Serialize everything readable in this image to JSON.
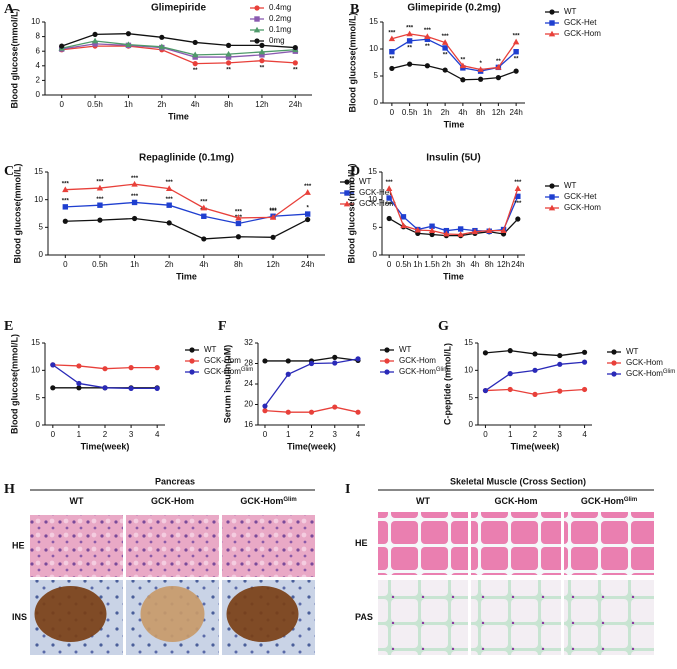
{
  "chart_data": [
    {
      "type": "line",
      "label": "A",
      "title": "Glimepiride",
      "xlabel": "Time",
      "ylabel": "Blood glucose(mmol/L)",
      "categories": [
        "0",
        "0.5h",
        "1h",
        "2h",
        "4h",
        "8h",
        "12h",
        "24h"
      ],
      "ylim": [
        0,
        10
      ],
      "yticks": [
        0,
        2,
        4,
        6,
        8,
        10
      ],
      "legend": "upper right",
      "series": [
        {
          "name": "0.4mg",
          "color": "#e8403a",
          "marker": "circle",
          "values": [
            6.2,
            6.7,
            6.7,
            6.2,
            4.3,
            4.4,
            4.7,
            4.4
          ],
          "annotation_side": "below",
          "annotations": [
            null,
            null,
            null,
            null,
            "**",
            "**",
            "**",
            "**"
          ]
        },
        {
          "name": "0.2mg",
          "color": "#8a5ab0",
          "marker": "square",
          "values": [
            6.3,
            7.0,
            6.8,
            6.5,
            5.2,
            5.2,
            5.5,
            6.0
          ]
        },
        {
          "name": "0.1mg",
          "color": "#4f9a6a",
          "marker": "triangle",
          "values": [
            6.4,
            7.4,
            6.9,
            6.6,
            5.5,
            5.6,
            5.9,
            6.2
          ]
        },
        {
          "name": "0mg",
          "color": "#111111",
          "marker": "circle",
          "values": [
            6.7,
            8.3,
            8.4,
            7.9,
            7.2,
            6.8,
            6.8,
            6.5
          ]
        }
      ]
    },
    {
      "type": "line",
      "label": "B",
      "title": "Glimepiride (0.2mg)",
      "xlabel": "Time",
      "ylabel": "Blood glucose(mmol/L)",
      "categories": [
        "0",
        "0.5h",
        "1h",
        "2h",
        "4h",
        "8h",
        "12h",
        "24h"
      ],
      "ylim": [
        0,
        15
      ],
      "yticks": [
        0,
        5,
        10,
        15
      ],
      "legend": "right",
      "series": [
        {
          "name": "WT",
          "color": "#111111",
          "marker": "circle",
          "values": [
            6.4,
            7.2,
            6.9,
            6.1,
            4.3,
            4.4,
            4.7,
            5.9
          ]
        },
        {
          "name": "GCK-Het",
          "color": "#1f3fd0",
          "marker": "square",
          "values": [
            9.5,
            11.5,
            11.8,
            10.2,
            6.5,
            5.9,
            6.6,
            9.5
          ],
          "annotation_side": "below",
          "annotations": [
            "**",
            "**",
            "**",
            "**",
            null,
            null,
            null,
            "**"
          ]
        },
        {
          "name": "GCK-Hom",
          "color": "#e8403a",
          "marker": "triangle",
          "values": [
            11.9,
            12.8,
            12.3,
            11.2,
            6.9,
            6.2,
            6.6,
            11.3
          ],
          "annotation_side": "above",
          "annotations": [
            "***",
            "***",
            "***",
            "***",
            "**",
            "*",
            "**",
            "***"
          ]
        }
      ]
    },
    {
      "type": "line",
      "label": "C",
      "title": "Repaglinide (0.1mg)",
      "xlabel": "Time",
      "ylabel": "Blood glucose(mmol/L)",
      "categories": [
        "0",
        "0.5h",
        "1h",
        "2h",
        "4h",
        "8h",
        "12h",
        "24h"
      ],
      "ylim": [
        0,
        15
      ],
      "yticks": [
        0,
        5,
        10,
        15
      ],
      "legend": "right",
      "series": [
        {
          "name": "WT",
          "color": "#111111",
          "marker": "circle",
          "values": [
            6.1,
            6.3,
            6.6,
            5.8,
            2.9,
            3.3,
            3.2,
            6.4
          ]
        },
        {
          "name": "GCK-Het",
          "color": "#1f3fd0",
          "marker": "square",
          "values": [
            8.7,
            9.0,
            9.5,
            9.0,
            7.0,
            5.7,
            7.0,
            7.4
          ],
          "annotation_side": "above",
          "annotations": [
            "***",
            "***",
            "***",
            "***",
            "***",
            "***",
            "***",
            "*"
          ]
        },
        {
          "name": "GCK-Hom",
          "color": "#e8403a",
          "marker": "triangle",
          "values": [
            11.8,
            12.1,
            12.8,
            12.0,
            8.5,
            6.7,
            6.8,
            11.3
          ],
          "annotation_side": "above",
          "annotations": [
            "***",
            "***",
            "***",
            "***",
            "***",
            "***",
            "***",
            "***"
          ]
        }
      ]
    },
    {
      "type": "line",
      "label": "D",
      "title": "Insulin (5U)",
      "xlabel": "Time",
      "ylabel": "Blood glucose(mmol/L)",
      "categories": [
        "0",
        "0.5h",
        "1h",
        "1.5h",
        "2h",
        "3h",
        "4h",
        "8h",
        "12h",
        "24h"
      ],
      "ylim": [
        0,
        15
      ],
      "yticks": [
        0,
        5,
        10,
        15
      ],
      "legend": "right",
      "series": [
        {
          "name": "WT",
          "color": "#111111",
          "marker": "circle",
          "values": [
            6.6,
            5.1,
            3.9,
            3.7,
            3.5,
            3.5,
            3.9,
            4.2,
            3.8,
            6.5
          ]
        },
        {
          "name": "GCK-Het",
          "color": "#1f3fd0",
          "marker": "square",
          "values": [
            10.3,
            6.9,
            4.6,
            5.2,
            4.4,
            4.7,
            4.4,
            4.3,
            4.6,
            10.6
          ],
          "annotation_side": "below",
          "annotations": [
            "***",
            null,
            null,
            null,
            null,
            null,
            null,
            null,
            null,
            "***"
          ]
        },
        {
          "name": "GCK-Hom",
          "color": "#e8403a",
          "marker": "triangle",
          "values": [
            12.0,
            5.3,
            4.5,
            4.4,
            3.8,
            3.7,
            4.2,
            4.4,
            4.4,
            12.0
          ],
          "annotation_side": "above",
          "annotations": [
            "***",
            null,
            null,
            null,
            null,
            null,
            null,
            null,
            null,
            "***"
          ]
        }
      ]
    },
    {
      "type": "line",
      "label": "E",
      "xlabel": "Time(week)",
      "ylabel": "Blood glucose(mmol/L)",
      "x": [
        0,
        1,
        2,
        3,
        4
      ],
      "xlim": [
        -0.3,
        4.3
      ],
      "xticks": [
        0,
        1,
        2,
        3,
        4
      ],
      "ylim": [
        0,
        15
      ],
      "yticks": [
        0,
        5,
        10,
        15
      ],
      "legend": "right",
      "series": [
        {
          "name": "WT",
          "color": "#111111",
          "marker": "circle",
          "values": [
            6.8,
            6.8,
            6.8,
            6.8,
            6.8
          ]
        },
        {
          "name": "GCK-Hom",
          "color": "#e8403a",
          "marker": "circle",
          "values": [
            11.0,
            10.8,
            10.3,
            10.5,
            10.5
          ]
        },
        {
          "name": "GCK-Hom",
          "name_sup": "Glim",
          "color": "#2a2ab8",
          "marker": "circle",
          "values": [
            11.0,
            7.6,
            6.8,
            6.7,
            6.7
          ]
        }
      ]
    },
    {
      "type": "line",
      "label": "F",
      "xlabel": "Time(week)",
      "ylabel": "Serum insulin(uM)",
      "x": [
        0,
        1,
        2,
        3,
        4
      ],
      "xlim": [
        -0.3,
        4.3
      ],
      "xticks": [
        0,
        1,
        2,
        3,
        4
      ],
      "ylim": [
        16,
        32
      ],
      "yticks": [
        16,
        20,
        24,
        28,
        32
      ],
      "legend": "right",
      "series": [
        {
          "name": "WT",
          "color": "#111111",
          "marker": "circle",
          "values": [
            28.5,
            28.5,
            28.5,
            29.2,
            28.6
          ]
        },
        {
          "name": "GCK-Hom",
          "color": "#e8403a",
          "marker": "circle",
          "values": [
            18.8,
            18.5,
            18.5,
            19.5,
            18.5
          ]
        },
        {
          "name": "GCK-Hom",
          "name_sup": "Glim",
          "color": "#2a2ab8",
          "marker": "circle",
          "values": [
            19.7,
            25.9,
            28.0,
            28.1,
            28.9
          ]
        }
      ]
    },
    {
      "type": "line",
      "label": "G",
      "xlabel": "Time(week)",
      "ylabel": "C-peptide (mmol/L)",
      "x": [
        0,
        1,
        2,
        3,
        4
      ],
      "xlim": [
        -0.3,
        4.3
      ],
      "xticks": [
        0,
        1,
        2,
        3,
        4
      ],
      "ylim": [
        0,
        15
      ],
      "yticks": [
        0,
        5,
        10,
        15
      ],
      "legend": "right",
      "series": [
        {
          "name": "WT",
          "color": "#111111",
          "marker": "circle",
          "values": [
            13.2,
            13.6,
            13.0,
            12.7,
            13.3
          ]
        },
        {
          "name": "GCK-Hom",
          "color": "#e8403a",
          "marker": "circle",
          "values": [
            6.3,
            6.5,
            5.6,
            6.2,
            6.5
          ]
        },
        {
          "name": "GCK-Hom",
          "name_sup": "Glim",
          "color": "#2a2ab8",
          "marker": "circle",
          "values": [
            6.3,
            9.4,
            10.0,
            11.1,
            11.5
          ]
        }
      ]
    }
  ],
  "histology": [
    {
      "label": "H",
      "title": "Pancreas",
      "columns": [
        {
          "name": "WT"
        },
        {
          "name": "GCK-Hom"
        },
        {
          "name": "GCK-Hom",
          "sup": "Glim"
        }
      ],
      "rows": [
        "HE",
        "INS"
      ]
    },
    {
      "label": "I",
      "title": "Skeletal Muscle (Cross Section)",
      "columns": [
        {
          "name": "WT"
        },
        {
          "name": "GCK-Hom"
        },
        {
          "name": "GCK-Hom",
          "sup": "Glim"
        }
      ],
      "rows": [
        "HE",
        "PAS"
      ]
    }
  ]
}
